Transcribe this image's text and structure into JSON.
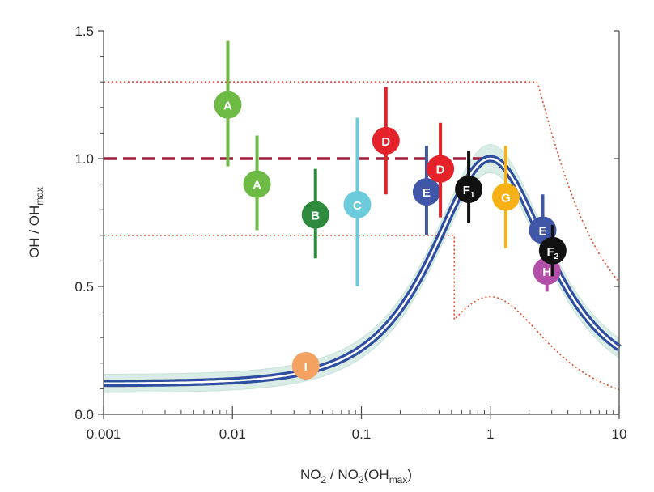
{
  "chart_data": {
    "type": "scatter",
    "x_scale": "log",
    "xlim": [
      0.001,
      10
    ],
    "ylim": [
      0.0,
      1.5
    ],
    "x_ticks": [
      {
        "value": 0.001,
        "label": "0.001"
      },
      {
        "value": 0.01,
        "label": "0.01"
      },
      {
        "value": 0.1,
        "label": "0.1"
      },
      {
        "value": 1,
        "label": "1"
      },
      {
        "value": 10,
        "label": "10"
      }
    ],
    "y_ticks": [
      {
        "value": 0.0,
        "label": "0.0"
      },
      {
        "value": 0.5,
        "label": "0.5"
      },
      {
        "value": 1.0,
        "label": "1.0"
      },
      {
        "value": 1.5,
        "label": "1.5"
      }
    ],
    "xlabel": {
      "main": "NO",
      "sub1": "2",
      "mid": " / NO",
      "sub2": "2",
      "tail": "(OH",
      "sub3": "max",
      "end": ")"
    },
    "ylabel": {
      "main": "OH / OH",
      "sub": "max"
    },
    "points": [
      {
        "label": "A",
        "sub": "",
        "x": 0.0092,
        "y": 1.21,
        "err_lo": 0.97,
        "err_hi": 1.46,
        "color": "#6dbb45"
      },
      {
        "label": "A",
        "sub": "",
        "x": 0.0155,
        "y": 0.9,
        "err_lo": 0.72,
        "err_hi": 1.09,
        "color": "#6dbb45"
      },
      {
        "label": "B",
        "sub": "",
        "x": 0.044,
        "y": 0.78,
        "err_lo": 0.61,
        "err_hi": 0.96,
        "color": "#2e8b3e"
      },
      {
        "label": "C",
        "sub": "",
        "x": 0.093,
        "y": 0.82,
        "err_lo": 0.5,
        "err_hi": 1.16,
        "color": "#6ccbdb"
      },
      {
        "label": "D",
        "sub": "",
        "x": 0.155,
        "y": 1.07,
        "err_lo": 0.86,
        "err_hi": 1.28,
        "color": "#e32229"
      },
      {
        "label": "E",
        "sub": "",
        "x": 0.32,
        "y": 0.87,
        "err_lo": 0.7,
        "err_hi": 1.05,
        "color": "#3f57a6"
      },
      {
        "label": "D",
        "sub": "",
        "x": 0.41,
        "y": 0.96,
        "err_lo": 0.77,
        "err_hi": 1.14,
        "color": "#e32229"
      },
      {
        "label": "F",
        "sub": "1",
        "x": 0.68,
        "y": 0.88,
        "err_lo": 0.75,
        "err_hi": 1.03,
        "color": "#111111"
      },
      {
        "label": "G",
        "sub": "",
        "x": 1.32,
        "y": 0.85,
        "err_lo": 0.65,
        "err_hi": 1.05,
        "color": "#f6b116"
      },
      {
        "label": "E",
        "sub": "",
        "x": 2.55,
        "y": 0.72,
        "err_lo": 0.6,
        "err_hi": 0.86,
        "color": "#3f57a6"
      },
      {
        "label": "H",
        "sub": "",
        "x": 2.75,
        "y": 0.56,
        "err_lo": 0.48,
        "err_hi": 0.63,
        "color": "#b34fa8"
      },
      {
        "label": "F",
        "sub": "2",
        "x": 3.05,
        "y": 0.64,
        "err_lo": 0.54,
        "err_hi": 0.74,
        "color": "#111111"
      },
      {
        "label": "I",
        "sub": "",
        "x": 0.037,
        "y": 0.19,
        "err_lo": 0.19,
        "err_hi": 0.19,
        "color": "#f4a261"
      }
    ],
    "reference_lines": {
      "dashed_plateau_y": 1.0,
      "dotted_upper_y": 1.3,
      "dotted_lower_y": 0.7
    },
    "model_curve": {
      "low_limit": 0.12,
      "peak_x": 1.0,
      "peak_y": 1.0,
      "band_width": 0.055
    },
    "colors": {
      "curve": "#2f4ea0",
      "band": "#d9ede6",
      "dashed": "#9e1c3c",
      "dotted": "#e0502a",
      "axis": "#444444"
    },
    "grid": false
  }
}
